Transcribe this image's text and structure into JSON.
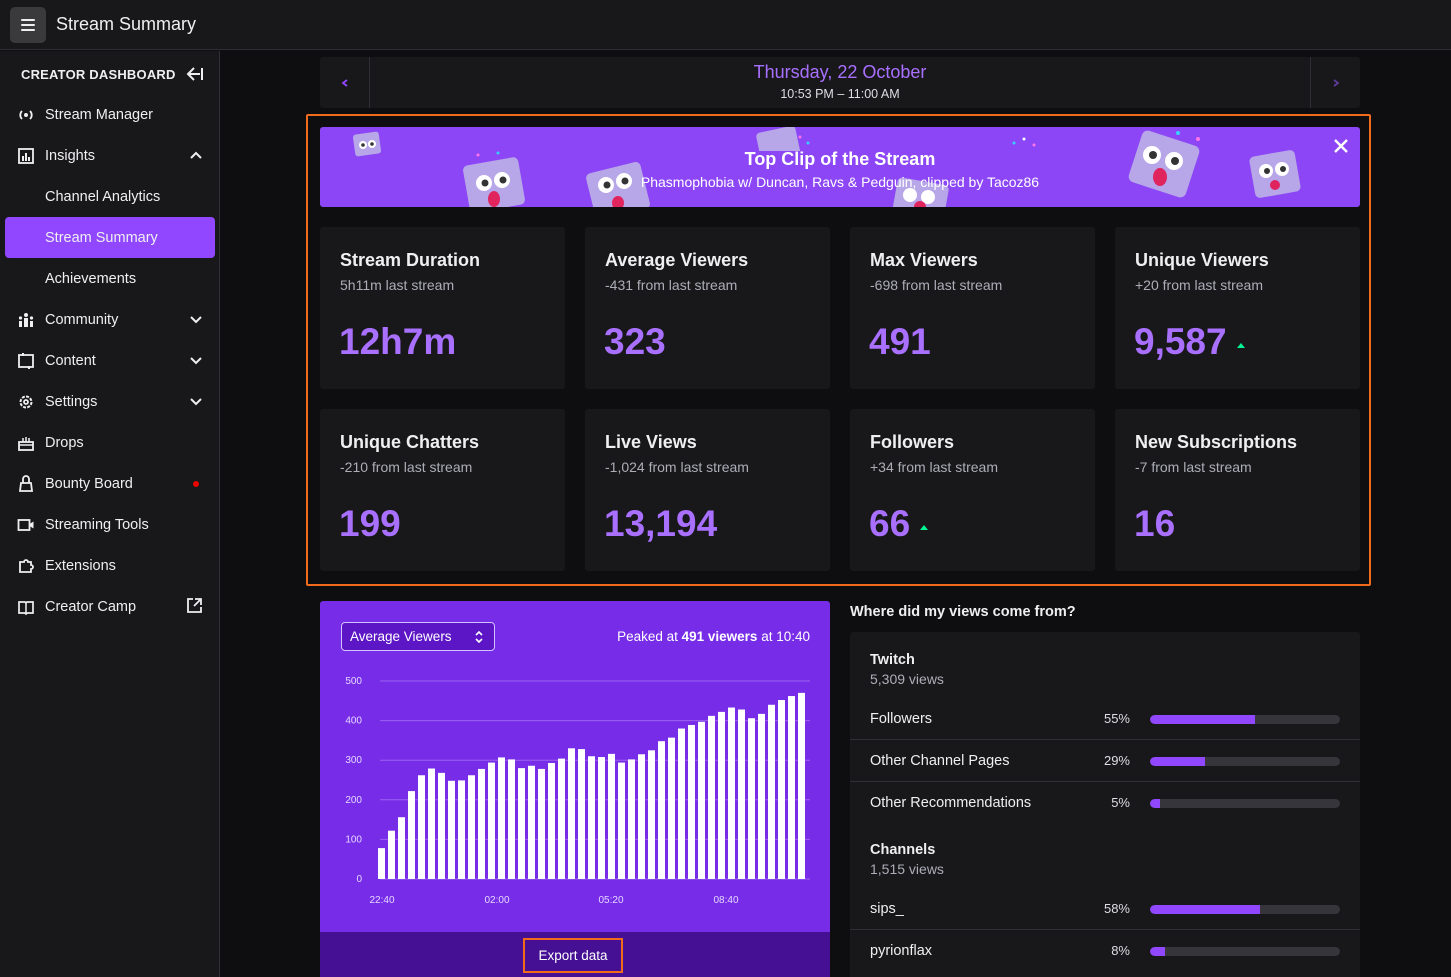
{
  "app": {
    "title": "Stream Summary"
  },
  "sidebar": {
    "header": "CREATOR DASHBOARD",
    "items": [
      {
        "label": "Stream Manager",
        "icon": "broadcast-icon"
      },
      {
        "label": "Insights",
        "icon": "insights-icon",
        "expanded": true
      },
      {
        "label": "Channel Analytics",
        "sub": true
      },
      {
        "label": "Stream Summary",
        "sub": true,
        "active": true
      },
      {
        "label": "Achievements",
        "sub": true
      },
      {
        "label": "Community",
        "icon": "community-icon"
      },
      {
        "label": "Content",
        "icon": "content-icon"
      },
      {
        "label": "Settings",
        "icon": "settings-icon"
      },
      {
        "label": "Drops",
        "icon": "drops-icon"
      },
      {
        "label": "Bounty Board",
        "icon": "bounty-icon",
        "badge": "red-dot"
      },
      {
        "label": "Streaming Tools",
        "icon": "camera-icon"
      },
      {
        "label": "Extensions",
        "icon": "extensions-icon"
      },
      {
        "label": "Creator Camp",
        "icon": "book-icon"
      }
    ]
  },
  "date": {
    "day": "Thursday, 22 October",
    "time": "10:53 PM – 11:00 AM"
  },
  "clip": {
    "title": "Top Clip of the Stream",
    "subtitle": "Phasmophobia w/ Duncan, Ravs & Pedguin, clipped by Tacoz86"
  },
  "stats": [
    {
      "label": "Stream Duration",
      "sub": "5h11m last stream",
      "value": "12h7m",
      "trend": "none"
    },
    {
      "label": "Average Viewers",
      "sub": "-431 from last stream",
      "value": "323",
      "trend": "none"
    },
    {
      "label": "Max Viewers",
      "sub": "-698 from last stream",
      "value": "491",
      "trend": "none"
    },
    {
      "label": "Unique Viewers",
      "sub": "+20 from last stream",
      "value": "9,587",
      "trend": "up"
    },
    {
      "label": "Unique Chatters",
      "sub": "-210 from last stream",
      "value": "199",
      "trend": "none"
    },
    {
      "label": "Live Views",
      "sub": "-1,024 from last stream",
      "value": "13,194",
      "trend": "none"
    },
    {
      "label": "Followers",
      "sub": "+34 from last stream",
      "value": "66",
      "trend": "up"
    },
    {
      "label": "New Subscriptions",
      "sub": "-7 from last stream",
      "value": "16",
      "trend": "none"
    }
  ],
  "chart": {
    "select_label": "Average Viewers",
    "peak_prefix": "Peaked at",
    "peak_value": "491 viewers",
    "peak_suffix": "at 10:40",
    "export_label": "Export data"
  },
  "chart_data": {
    "type": "bar",
    "ylim": [
      0,
      500
    ],
    "yticks": [
      "0",
      "100",
      "200",
      "300",
      "400",
      "500"
    ],
    "xticks": [
      "22:40",
      "02:00",
      "05:20",
      "08:40"
    ],
    "values": [
      78,
      122,
      156,
      222,
      262,
      279,
      268,
      248,
      249,
      262,
      278,
      294,
      307,
      302,
      280,
      286,
      278,
      293,
      304,
      330,
      328,
      310,
      308,
      316,
      294,
      302,
      315,
      325,
      348,
      357,
      380,
      389,
      397,
      412,
      422,
      433,
      428,
      406,
      417,
      440,
      452,
      462,
      470
    ]
  },
  "views": {
    "title": "Where did my views come from?",
    "groups": [
      {
        "name": "Twitch",
        "count": "5,309 views",
        "rows": [
          {
            "name": "Followers",
            "pct": "55%",
            "fill": 55
          },
          {
            "name": "Other Channel Pages",
            "pct": "29%",
            "fill": 29
          },
          {
            "name": "Other Recommendations",
            "pct": "5%",
            "fill": 5
          }
        ]
      },
      {
        "name": "Channels",
        "count": "1,515 views",
        "rows": [
          {
            "name": "sips_",
            "pct": "58%",
            "fill": 58
          },
          {
            "name": "pyrionflax",
            "pct": "8%",
            "fill": 8
          }
        ]
      }
    ]
  },
  "colors": {
    "accent": "#9147ff",
    "highlight": "#f26b1d",
    "trend_up": "#00f593"
  }
}
